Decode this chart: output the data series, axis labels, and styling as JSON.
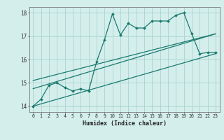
{
  "xlabel": "Humidex (Indice chaleur)",
  "bg_color": "#d4eeec",
  "grid_color": "#a8d4d0",
  "line_color": "#1a7a6e",
  "xlim": [
    -0.5,
    23.5
  ],
  "ylim": [
    13.75,
    18.25
  ],
  "yticks": [
    14,
    15,
    16,
    17,
    18
  ],
  "xticks": [
    0,
    1,
    2,
    3,
    4,
    5,
    6,
    7,
    8,
    9,
    10,
    11,
    12,
    13,
    14,
    15,
    16,
    17,
    18,
    19,
    20,
    21,
    22,
    23
  ],
  "line1_x": [
    0,
    1,
    2,
    3,
    4,
    5,
    6,
    7,
    8,
    9,
    10,
    11,
    12,
    13,
    14,
    15,
    16,
    17,
    18,
    19,
    20,
    21,
    22,
    23
  ],
  "line1_y": [
    14.0,
    14.3,
    14.9,
    15.0,
    14.8,
    14.65,
    14.75,
    14.65,
    15.9,
    16.85,
    17.95,
    17.05,
    17.55,
    17.35,
    17.35,
    17.65,
    17.65,
    17.65,
    17.9,
    18.0,
    17.1,
    16.25,
    16.3,
    16.3
  ],
  "line2_x": [
    0,
    23
  ],
  "line2_y": [
    14.0,
    16.25
  ],
  "line3_x": [
    0,
    23
  ],
  "line3_y": [
    14.75,
    17.1
  ],
  "line4_x": [
    0,
    23
  ],
  "line4_y": [
    15.1,
    17.1
  ]
}
